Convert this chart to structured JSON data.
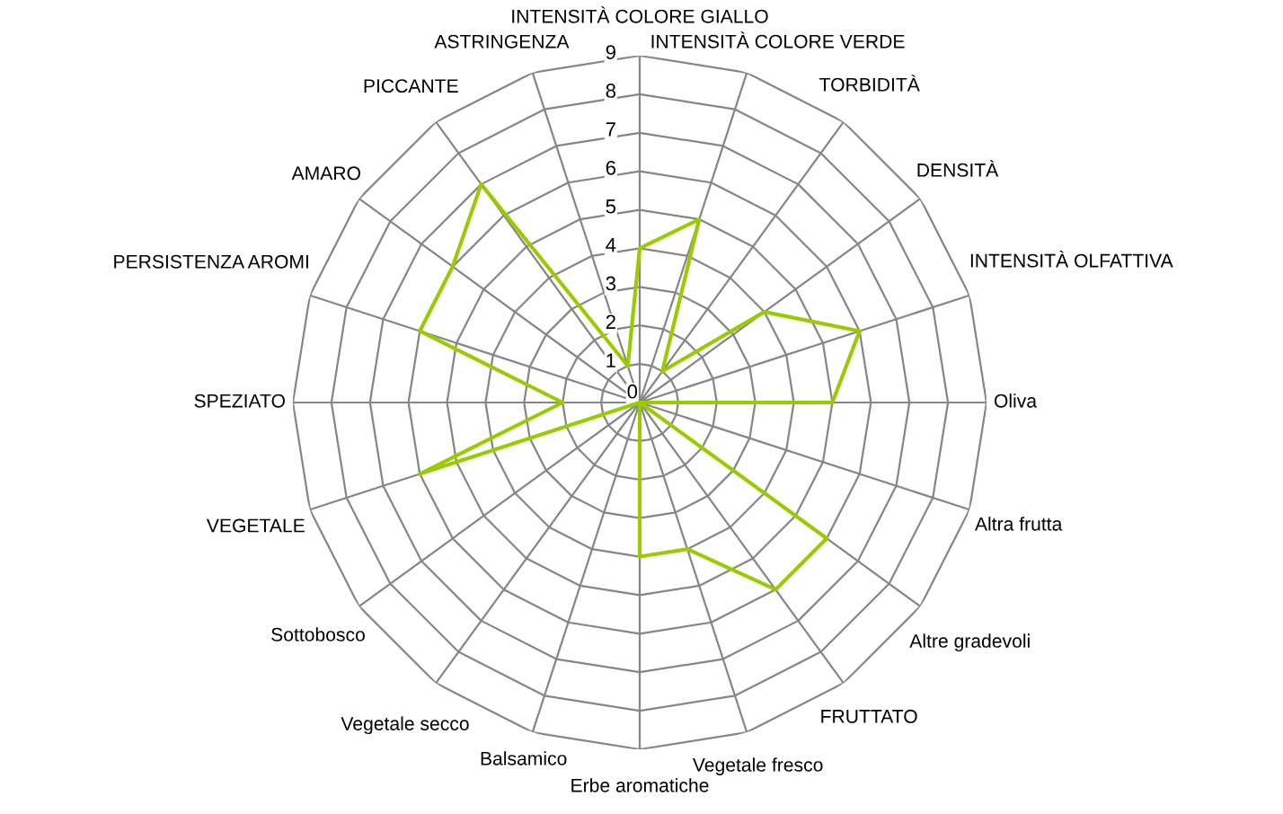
{
  "chart_data": {
    "type": "radar",
    "categories": [
      "INTENSITÀ COLORE GIALLO",
      "INTENSITÀ COLORE VERDE",
      "TORBIDITÀ",
      "DENSITÀ",
      "INTENSITÀ OLFATTIVA",
      "Oliva",
      "Altra frutta",
      "Altre gradevoli",
      "FRUTTATO",
      "Vegetale fresco",
      "Erbe aromatiche",
      "Balsamico",
      "Vegetale secco",
      "Sottobosco",
      "VEGETALE",
      "SPEZIATO",
      "PERSISTENZA AROMI",
      "AMARO",
      "PICCANTE",
      "ASTRINGENZA"
    ],
    "series": [
      {
        "color": "#99cc00",
        "values": [
          4,
          5,
          1,
          4,
          6,
          5,
          0,
          6,
          6,
          4,
          4,
          0,
          0,
          0,
          6,
          2,
          6,
          6,
          7,
          1
        ]
      }
    ],
    "ylim": [
      0,
      9
    ],
    "yticks": [
      0,
      1,
      2,
      3,
      4,
      5,
      6,
      7,
      8,
      9
    ],
    "grid": true
  }
}
